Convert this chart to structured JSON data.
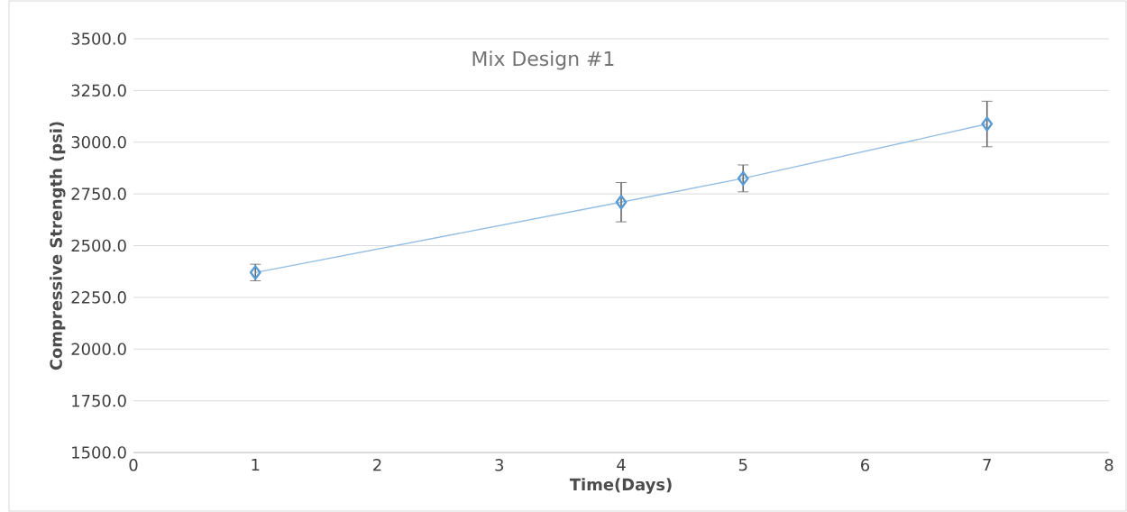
{
  "chart_data": {
    "type": "line",
    "title": "Mix Design #1",
    "xlabel": "Time(Days)",
    "ylabel": "Compressive Strength (psi)",
    "x": [
      1,
      4,
      5,
      7
    ],
    "series": [
      {
        "color": "#5b9bd5",
        "values": [
          2370,
          2710,
          2825,
          3088
        ],
        "errors": [
          40,
          95,
          65,
          110
        ]
      }
    ],
    "xlim": [
      0,
      8
    ],
    "xticks": [
      0,
      1,
      2,
      3,
      4,
      5,
      6,
      7,
      8
    ],
    "ylim": [
      1500,
      3500
    ],
    "yticks": [
      {
        "value": 1500,
        "label": "1500.0"
      },
      {
        "value": 1750,
        "label": "1750.0"
      },
      {
        "value": 2000,
        "label": "2000.0"
      },
      {
        "value": 2250,
        "label": "2250.0"
      },
      {
        "value": 2500,
        "label": "2500.0"
      },
      {
        "value": 2750,
        "label": "2750.0"
      },
      {
        "value": 3000,
        "label": "3000.0"
      },
      {
        "value": 3250,
        "label": "3250.0"
      },
      {
        "value": 3500,
        "label": "3500.0"
      }
    ],
    "grid": "y",
    "marker": "diamond",
    "line_style": "solid"
  }
}
